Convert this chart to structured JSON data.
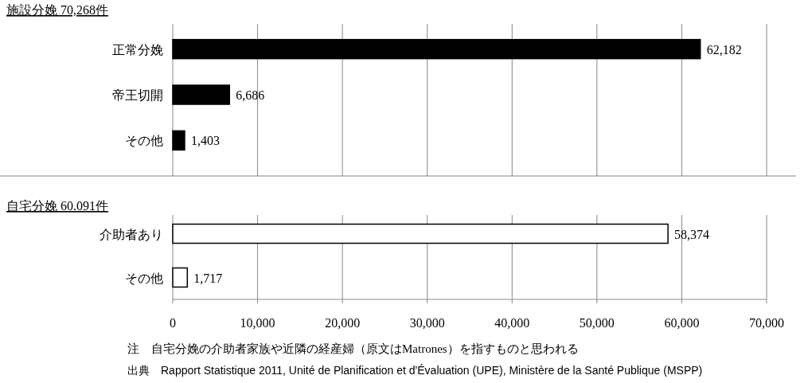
{
  "chart_data": [
    {
      "type": "bar",
      "orientation": "horizontal",
      "title": "施設分娩 70,268件",
      "categories": [
        "正常分娩",
        "帝王切開",
        "その他"
      ],
      "values": [
        62182,
        6686,
        1403
      ],
      "value_labels": [
        "62,182",
        "6,686",
        "1,403"
      ],
      "colors": [
        "#000000",
        "#000000",
        "#000000"
      ],
      "xlim": [
        0,
        70000
      ],
      "xticks": [
        {
          "value": 0,
          "label": null
        },
        {
          "value": 10000,
          "label": null
        },
        {
          "value": 20000,
          "label": null
        },
        {
          "value": 30000,
          "label": null
        },
        {
          "value": 40000,
          "label": null
        },
        {
          "value": 50000,
          "label": null
        },
        {
          "value": 60000,
          "label": null
        },
        {
          "value": 70000,
          "label": null
        }
      ],
      "grid": "x",
      "tick_labels": "y"
    },
    {
      "type": "bar",
      "orientation": "horizontal",
      "title": "自宅分娩 60.091件",
      "categories": [
        "介助者あり",
        "その他"
      ],
      "values": [
        58374,
        1717
      ],
      "value_labels": [
        "58,374",
        "1,717"
      ],
      "colors": [
        "#ffffff",
        "#ffffff"
      ],
      "xlim": [
        0,
        70000
      ],
      "xticks": [
        0,
        {
          "value": 10000,
          "label": "10,000"
        },
        {
          "value": 20000,
          "label": "20,000"
        },
        {
          "value": 30000,
          "label": "30,000"
        },
        {
          "value": 40000,
          "label": "40,000"
        },
        {
          "value": 50000,
          "label": "50,000"
        },
        {
          "value": 60000,
          "label": "60,000"
        },
        {
          "value": 70000,
          "label": "70,000"
        }
      ],
      "grid": "x",
      "annotations": [
        "注　自宅分娩の介助者家族や近隣の経産婦（原文はMatrones）を指すものと思われる",
        "出典　Rapport Statistique 2011, Unité de Planification et d'Évaluation (UPE), Ministère de la Santé Publique (MSPP)"
      ]
    }
  ]
}
